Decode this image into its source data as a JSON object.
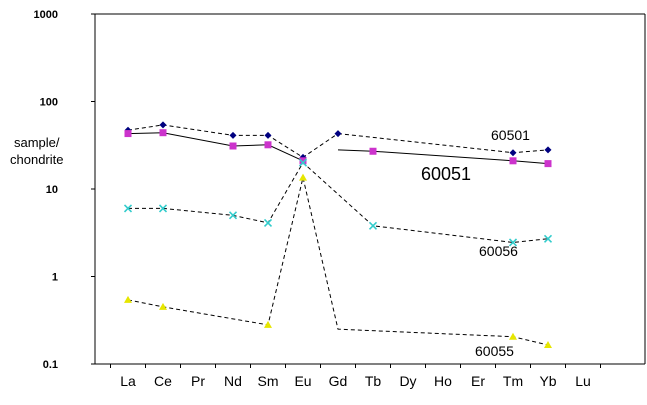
{
  "chart_data": {
    "type": "line",
    "xlabel": "",
    "ylabel": [
      "sample/",
      "chondrite"
    ],
    "yscale": "log",
    "ylim": [
      0.1,
      1000
    ],
    "yticks": [
      "0.1",
      "1",
      "10",
      "100",
      "1000"
    ],
    "categories": [
      "La",
      "Ce",
      "Pr",
      "Nd",
      "Sm",
      "Eu",
      "Gd",
      "Tb",
      "Dy",
      "Ho",
      "Er",
      "Tm",
      "Yb",
      "Lu"
    ],
    "grid": false,
    "series": [
      {
        "name": "60501",
        "label_text": "60501",
        "color": "#000080",
        "marker": "diamond",
        "line": "dashed",
        "points": [
          {
            "x": "La",
            "y": 47
          },
          {
            "x": "Ce",
            "y": 54
          },
          {
            "x": "Nd",
            "y": 41
          },
          {
            "x": "Sm",
            "y": 41
          },
          {
            "x": "Eu",
            "y": 23
          },
          {
            "x": "Gd",
            "y": 43
          },
          {
            "x": "Tm",
            "y": 26
          },
          {
            "x": "Yb",
            "y": 28
          }
        ],
        "segments": [
          [
            "La",
            "Ce",
            "Nd",
            "Sm",
            "Eu",
            "Gd"
          ],
          [
            "Gd",
            "Tm",
            "Yb"
          ]
        ]
      },
      {
        "name": "60051",
        "label_text": "60051",
        "color": "#cc33cc",
        "marker": "square",
        "line": "solid",
        "points": [
          {
            "x": "La",
            "y": 43
          },
          {
            "x": "Ce",
            "y": 44
          },
          {
            "x": "Nd",
            "y": 31
          },
          {
            "x": "Sm",
            "y": 32
          },
          {
            "x": "Eu",
            "y": 21
          },
          {
            "x": "Tb",
            "y": 27
          },
          {
            "x": "Tm",
            "y": 21
          },
          {
            "x": "Yb",
            "y": 19.5
          }
        ],
        "segments": [
          [
            "La",
            "Ce",
            "Nd",
            "Sm",
            "Eu"
          ],
          [
            "Gd@28",
            "Tb",
            "Tm",
            "Yb"
          ]
        ]
      },
      {
        "name": "60056",
        "label_text": "60056",
        "color": "#33cccc",
        "marker": "x",
        "line": "dashed",
        "points": [
          {
            "x": "La",
            "y": 6.0
          },
          {
            "x": "Ce",
            "y": 6.0
          },
          {
            "x": "Nd",
            "y": 5.0
          },
          {
            "x": "Sm",
            "y": 4.1
          },
          {
            "x": "Eu",
            "y": 20
          },
          {
            "x": "Tb",
            "y": 3.8
          },
          {
            "x": "Tm",
            "y": 2.45
          },
          {
            "x": "Yb",
            "y": 2.7
          }
        ],
        "segments": [
          [
            "La",
            "Ce",
            "Nd",
            "Sm",
            "Eu",
            "Tb",
            "Tm",
            "Yb"
          ]
        ]
      },
      {
        "name": "60055",
        "label_text": "60055",
        "color": "#e6e600",
        "marker": "triangle",
        "line": "dashed",
        "points": [
          {
            "x": "La",
            "y": 0.54
          },
          {
            "x": "Ce",
            "y": 0.45
          },
          {
            "x": "Sm",
            "y": 0.28
          },
          {
            "x": "Eu",
            "y": 13.5
          },
          {
            "x": "Tm",
            "y": 0.205
          },
          {
            "x": "Yb",
            "y": 0.165
          }
        ],
        "segments": [
          [
            "La",
            "Ce",
            "Sm",
            "Eu",
            "Gd@0.25",
            "Tm",
            "Yb"
          ]
        ]
      }
    ]
  }
}
